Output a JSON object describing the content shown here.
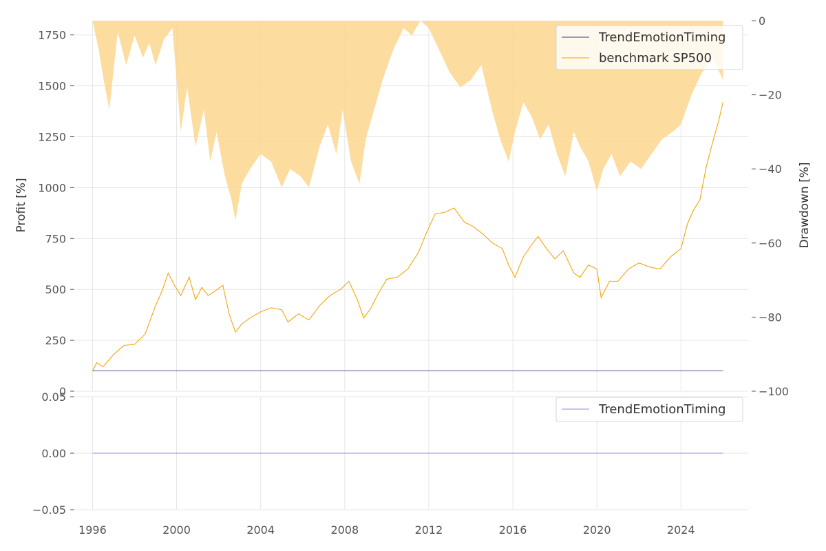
{
  "chart_data": [
    {
      "type": "line",
      "title": "",
      "xlabel": "",
      "ylabel": "Profit [%]",
      "ylabel_right": "Drawdown [%]",
      "xlim": [
        1995.2,
        2027.2
      ],
      "ylim": [
        0,
        1820
      ],
      "ylim_right": [
        -100,
        0
      ],
      "x_ticks": [
        "1996",
        "2000",
        "2004",
        "2008",
        "2012",
        "2016",
        "2020",
        "2024"
      ],
      "y_ticks": [
        "0",
        "250",
        "500",
        "750",
        "1000",
        "1250",
        "1500",
        "1750"
      ],
      "y_ticks_right": [
        "0",
        "−20",
        "−40",
        "−60",
        "−80",
        "−100"
      ],
      "grid": true,
      "legend_position": "top-right",
      "series": [
        {
          "name": "TrendEmotionTiming",
          "color": "#3a3a7a",
          "x": [
            1996.0,
            2026.0
          ],
          "values": [
            100,
            100
          ]
        },
        {
          "name": "benchmark SP500",
          "color": "#f2a60a",
          "x": [
            1996.0,
            1996.2,
            1996.5,
            1997.0,
            1997.5,
            1998.0,
            1998.5,
            1999.0,
            1999.3,
            1999.6,
            1999.9,
            2000.2,
            2000.6,
            2000.9,
            2001.2,
            2001.5,
            2001.8,
            2002.2,
            2002.5,
            2002.8,
            2003.1,
            2003.5,
            2004.0,
            2004.5,
            2005.0,
            2005.3,
            2005.8,
            2006.3,
            2006.8,
            2007.3,
            2007.8,
            2008.2,
            2008.6,
            2008.9,
            2009.2,
            2009.6,
            2010.0,
            2010.5,
            2011.0,
            2011.5,
            2011.9,
            2012.3,
            2012.8,
            2013.2,
            2013.7,
            2014.1,
            2014.6,
            2015.0,
            2015.5,
            2015.8,
            2016.1,
            2016.5,
            2016.9,
            2017.2,
            2017.6,
            2018.0,
            2018.4,
            2018.9,
            2019.2,
            2019.6,
            2020.0,
            2020.2,
            2020.6,
            2021.0,
            2021.5,
            2022.0,
            2022.5,
            2023.0,
            2023.5,
            2024.0,
            2024.3,
            2024.6,
            2024.9,
            2025.2,
            2025.5,
            2025.8,
            2026.0
          ],
          "values": [
            100,
            140,
            120,
            180,
            225,
            230,
            280,
            420,
            490,
            580,
            520,
            470,
            560,
            450,
            510,
            470,
            490,
            520,
            380,
            290,
            330,
            360,
            390,
            410,
            400,
            340,
            380,
            350,
            420,
            470,
            500,
            540,
            450,
            360,
            400,
            480,
            550,
            560,
            600,
            680,
            780,
            870,
            880,
            900,
            830,
            810,
            770,
            730,
            700,
            620,
            560,
            660,
            720,
            760,
            700,
            650,
            690,
            580,
            560,
            620,
            600,
            460,
            540,
            540,
            600,
            630,
            610,
            600,
            660,
            700,
            820,
            890,
            940,
            1100,
            1220,
            1330,
            1420
          ]
        }
      ],
      "drawdown": {
        "name": "Drawdown",
        "color": "#fdd68e",
        "x": [
          1996.0,
          1996.3,
          1996.5,
          1996.8,
          1997.2,
          1997.6,
          1998.0,
          1998.4,
          1998.7,
          1999.0,
          1999.4,
          1999.8,
          2000.2,
          2000.5,
          2000.9,
          2001.3,
          2001.6,
          2001.9,
          2002.3,
          2002.6,
          2002.8,
          2003.1,
          2003.5,
          2004.0,
          2004.5,
          2005.0,
          2005.4,
          2005.9,
          2006.3,
          2006.8,
          2007.2,
          2007.6,
          2007.9,
          2008.3,
          2008.7,
          2009.0,
          2009.4,
          2009.8,
          2010.3,
          2010.8,
          2011.2,
          2011.6,
          2012.0,
          2012.5,
          2013.0,
          2013.5,
          2014.0,
          2014.5,
          2015.0,
          2015.4,
          2015.8,
          2016.1,
          2016.5,
          2016.9,
          2017.3,
          2017.7,
          2018.1,
          2018.5,
          2018.9,
          2019.2,
          2019.6,
          2020.0,
          2020.3,
          2020.7,
          2021.1,
          2021.6,
          2022.1,
          2022.6,
          2023.1,
          2023.6,
          2024.0,
          2024.5,
          2025.0,
          2025.5,
          2026.0
        ],
        "values": [
          0,
          -8,
          -15,
          -24,
          -3,
          -12,
          -4,
          -10,
          -6,
          -12,
          -5,
          -2,
          -30,
          -18,
          -34,
          -24,
          -38,
          -30,
          -42,
          -48,
          -54,
          -44,
          -40,
          -36,
          -38,
          -45,
          -40,
          -42,
          -45,
          -34,
          -28,
          -36,
          -24,
          -38,
          -44,
          -32,
          -24,
          -16,
          -8,
          -2,
          -4,
          0,
          -2,
          -8,
          -14,
          -18,
          -16,
          -12,
          -24,
          -32,
          -38,
          -30,
          -22,
          -26,
          -32,
          -28,
          -36,
          -42,
          -30,
          -34,
          -38,
          -46,
          -40,
          -36,
          -42,
          -38,
          -40,
          -36,
          -32,
          -30,
          -28,
          -20,
          -14,
          -10,
          -16
        ]
      }
    },
    {
      "type": "line",
      "title": "",
      "xlabel": "",
      "ylabel": "",
      "xlim": [
        1995.2,
        2027.2
      ],
      "ylim": [
        -0.05,
        0.05
      ],
      "y_ticks": [
        "0.05",
        "0.00",
        "−0.05"
      ],
      "grid": true,
      "legend_position": "top-right",
      "series": [
        {
          "name": "TrendEmotionTiming",
          "color": "#8b8bef",
          "x": [
            1996.0,
            2026.0
          ],
          "values": [
            0,
            0
          ]
        }
      ]
    }
  ]
}
